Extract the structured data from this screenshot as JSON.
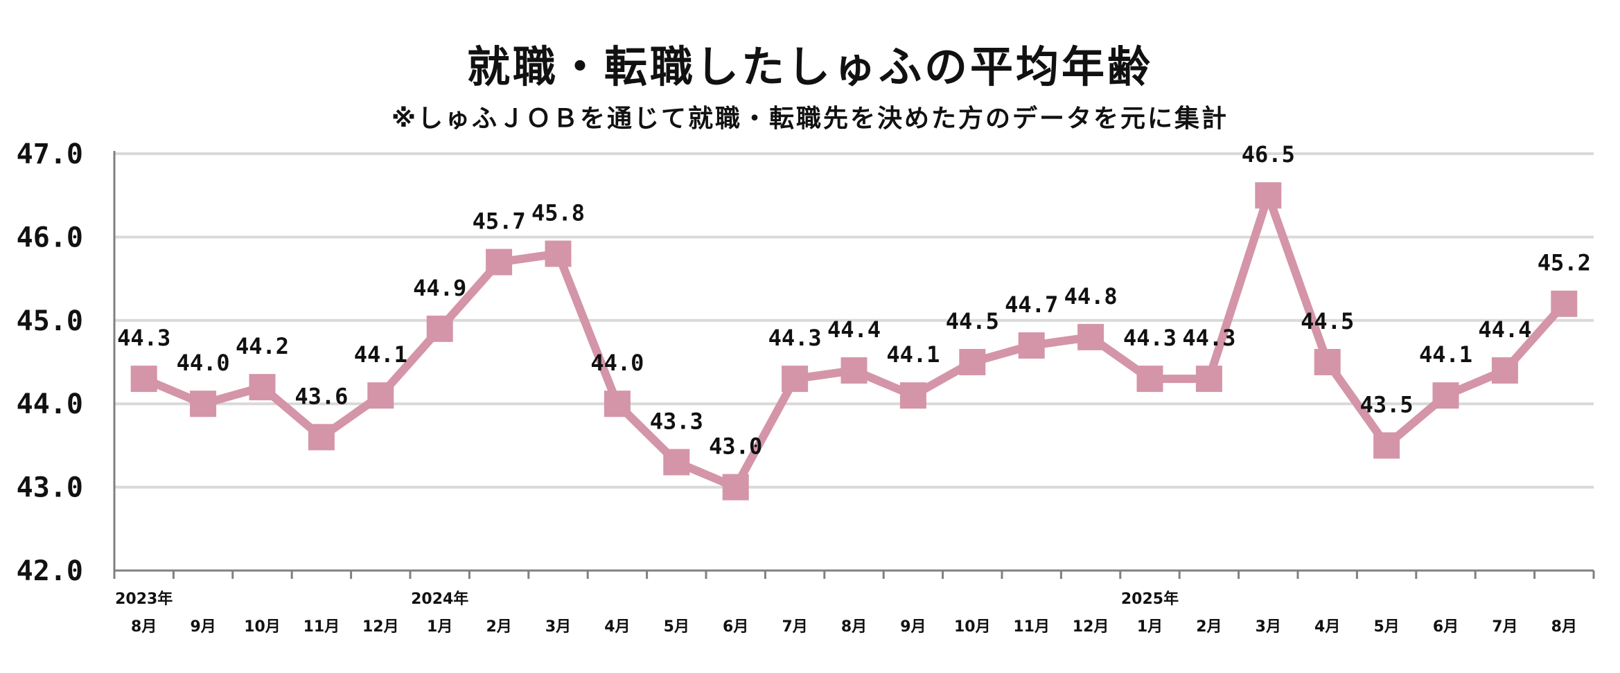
{
  "chart_data": {
    "type": "line",
    "title": "就職・転職したしゅふの平均年齢",
    "subtitle": "※しゅふＪＯＢを通じて就職・転職先を決めた方のデータを元に集計",
    "x": [
      {
        "year": "2023年",
        "month": "8月"
      },
      {
        "year": "",
        "month": "9月"
      },
      {
        "year": "",
        "month": "10月"
      },
      {
        "year": "",
        "month": "11月"
      },
      {
        "year": "",
        "month": "12月"
      },
      {
        "year": "2024年",
        "month": "1月"
      },
      {
        "year": "",
        "month": "2月"
      },
      {
        "year": "",
        "month": "3月"
      },
      {
        "year": "",
        "month": "4月"
      },
      {
        "year": "",
        "month": "5月"
      },
      {
        "year": "",
        "month": "6月"
      },
      {
        "year": "",
        "month": "7月"
      },
      {
        "year": "",
        "month": "8月"
      },
      {
        "year": "",
        "month": "9月"
      },
      {
        "year": "",
        "month": "10月"
      },
      {
        "year": "",
        "month": "11月"
      },
      {
        "year": "",
        "month": "12月"
      },
      {
        "year": "2025年",
        "month": "1月"
      },
      {
        "year": "",
        "month": "2月"
      },
      {
        "year": "",
        "month": "3月"
      },
      {
        "year": "",
        "month": "4月"
      },
      {
        "year": "",
        "month": "5月"
      },
      {
        "year": "",
        "month": "6月"
      },
      {
        "year": "",
        "month": "7月"
      },
      {
        "year": "",
        "month": "8月"
      }
    ],
    "values": [
      44.3,
      44.0,
      44.2,
      43.6,
      44.1,
      44.9,
      45.7,
      45.8,
      44.0,
      43.3,
      43.0,
      44.3,
      44.4,
      44.1,
      44.5,
      44.7,
      44.8,
      44.3,
      44.3,
      46.5,
      44.5,
      43.5,
      44.1,
      44.4,
      45.2
    ],
    "data_labels": [
      "44.3",
      "44.0",
      "44.2",
      "43.6",
      "44.1",
      "44.9",
      "45.7",
      "45.8",
      "44.0",
      "43.3",
      "43.0",
      "44.3",
      "44.4",
      "44.1",
      "44.5",
      "44.7",
      "44.8",
      "44.3",
      "44.3",
      "46.5",
      "44.5",
      "43.5",
      "44.1",
      "44.4",
      "45.2"
    ],
    "ylim": [
      42.0,
      47.0
    ],
    "yticks": [
      "42.0",
      "43.0",
      "44.0",
      "45.0",
      "46.0",
      "47.0"
    ],
    "grid": true,
    "legend": "none",
    "colors": {
      "line": "#D495A8",
      "grid": "#D9D9D9",
      "axis": "#808080"
    }
  }
}
